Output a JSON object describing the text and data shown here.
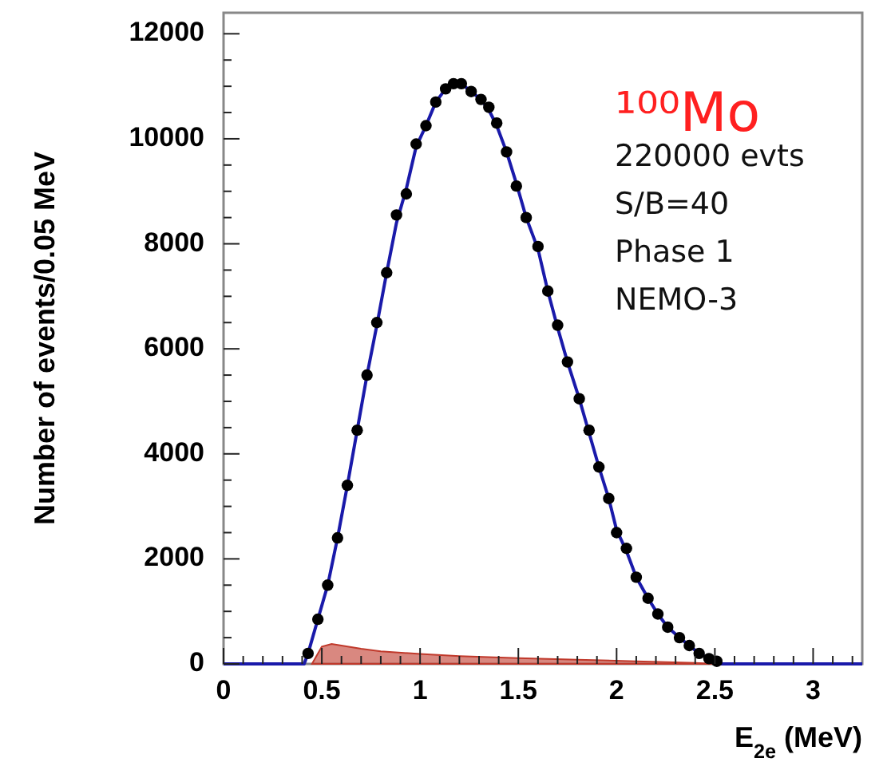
{
  "chart_data": {
    "type": "scatter",
    "xlabel": "E$_{2e}$ (MeV)",
    "ylabel": "Number of events/0.05 MeV",
    "xlim": [
      0,
      3.25
    ],
    "ylim": [
      0,
      12400
    ],
    "xticks": [
      0,
      {
        "value": 0.1,
        "label": null
      },
      {
        "value": 0.2,
        "label": null
      },
      {
        "value": 0.3,
        "label": null
      },
      {
        "value": 0.4,
        "label": null
      },
      0.5,
      {
        "value": 0.6,
        "label": null
      },
      {
        "value": 0.7,
        "label": null
      },
      {
        "value": 0.8,
        "label": null
      },
      {
        "value": 0.9,
        "label": null
      },
      1,
      {
        "value": 1.1,
        "label": null
      },
      {
        "value": 1.2,
        "label": null
      },
      {
        "value": 1.3,
        "label": null
      },
      {
        "value": 1.4,
        "label": null
      },
      1.5,
      {
        "value": 1.6,
        "label": null
      },
      {
        "value": 1.7,
        "label": null
      },
      {
        "value": 1.8,
        "label": null
      },
      {
        "value": 1.9,
        "label": null
      },
      2,
      {
        "value": 2.1,
        "label": null
      },
      {
        "value": 2.2,
        "label": null
      },
      {
        "value": 2.3,
        "label": null
      },
      {
        "value": 2.4,
        "label": null
      },
      2.5,
      {
        "value": 2.6,
        "label": null
      },
      {
        "value": 2.7,
        "label": null
      },
      {
        "value": 2.8,
        "label": null
      },
      {
        "value": 2.9,
        "label": null
      },
      3,
      {
        "value": 3.1,
        "label": null
      },
      {
        "value": 3.2,
        "label": null
      }
    ],
    "yticks": [
      0,
      {
        "value": 500,
        "label": null
      },
      {
        "value": 1000,
        "label": null
      },
      {
        "value": 1500,
        "label": null
      },
      2000,
      {
        "value": 2500,
        "label": null
      },
      {
        "value": 3000,
        "label": null
      },
      {
        "value": 3500,
        "label": null
      },
      4000,
      {
        "value": 4500,
        "label": null
      },
      {
        "value": 5000,
        "label": null
      },
      {
        "value": 5500,
        "label": null
      },
      6000,
      {
        "value": 6500,
        "label": null
      },
      {
        "value": 7000,
        "label": null
      },
      {
        "value": 7500,
        "label": null
      },
      8000,
      {
        "value": 8500,
        "label": null
      },
      {
        "value": 9000,
        "label": null
      },
      {
        "value": 9500,
        "label": null
      },
      10000,
      {
        "value": 10500,
        "label": null
      },
      {
        "value": 11000,
        "label": null
      },
      {
        "value": 11500,
        "label": null
      },
      12000
    ],
    "grid": false,
    "annotations": [
      "¹⁰⁰Mo",
      "220000 evts",
      "S/B=40",
      "Phase 1",
      "NEMO-3"
    ],
    "series": [
      {
        "type": "area",
        "color": "#c0392b",
        "x": [
          0.45,
          0.5,
          0.55,
          0.6,
          0.7,
          0.8,
          1.0,
          1.2,
          1.5,
          1.8,
          2.1,
          2.4,
          2.5
        ],
        "values": [
          0,
          330,
          380,
          350,
          290,
          240,
          190,
          150,
          110,
          80,
          50,
          20,
          0
        ]
      },
      {
        "type": "line",
        "color": "#1a1aaa",
        "line_style": "solid",
        "x": [
          0,
          0.41,
          0.43,
          0.48,
          0.53,
          0.58,
          0.63,
          0.68,
          0.73,
          0.78,
          0.83,
          0.88,
          0.93,
          0.98,
          1.03,
          1.08,
          1.13,
          1.17,
          1.21,
          1.26,
          1.31,
          1.35,
          1.39,
          1.44,
          1.49,
          1.54,
          1.6,
          1.65,
          1.7,
          1.75,
          1.81,
          1.86,
          1.91,
          1.96,
          2.0,
          2.05,
          2.1,
          2.16,
          2.21,
          2.26,
          2.32,
          2.37,
          2.42,
          2.47,
          2.52,
          3.25
        ],
        "values": [
          0,
          0,
          200,
          850,
          1500,
          2400,
          3400,
          4450,
          5500,
          6450,
          7450,
          8400,
          9050,
          9850,
          10250,
          10700,
          10950,
          11050,
          11050,
          10900,
          10750,
          10550,
          10250,
          9750,
          9150,
          8500,
          7900,
          7100,
          6400,
          5750,
          5050,
          4400,
          3750,
          3150,
          2550,
          2150,
          1650,
          1250,
          950,
          700,
          500,
          350,
          200,
          100,
          0,
          0
        ]
      },
      {
        "color": "#000000",
        "marker": "circle",
        "x": [
          0.43,
          0.48,
          0.53,
          0.58,
          0.63,
          0.68,
          0.73,
          0.78,
          0.83,
          0.88,
          0.93,
          0.98,
          1.03,
          1.08,
          1.13,
          1.17,
          1.21,
          1.26,
          1.31,
          1.35,
          1.39,
          1.44,
          1.49,
          1.54,
          1.6,
          1.65,
          1.7,
          1.75,
          1.81,
          1.86,
          1.91,
          1.96,
          2.0,
          2.05,
          2.1,
          2.16,
          2.21,
          2.26,
          2.32,
          2.37,
          2.42,
          2.47,
          2.51
        ],
        "values": [
          200,
          850,
          1500,
          2400,
          3400,
          4450,
          5500,
          6500,
          7450,
          8550,
          8950,
          9900,
          10250,
          10700,
          10950,
          11050,
          11050,
          10900,
          10750,
          10600,
          10300,
          9750,
          9100,
          8500,
          7950,
          7100,
          6450,
          5750,
          5050,
          4450,
          3750,
          3150,
          2500,
          2200,
          1650,
          1250,
          950,
          700,
          500,
          350,
          200,
          100,
          50
        ]
      }
    ]
  }
}
